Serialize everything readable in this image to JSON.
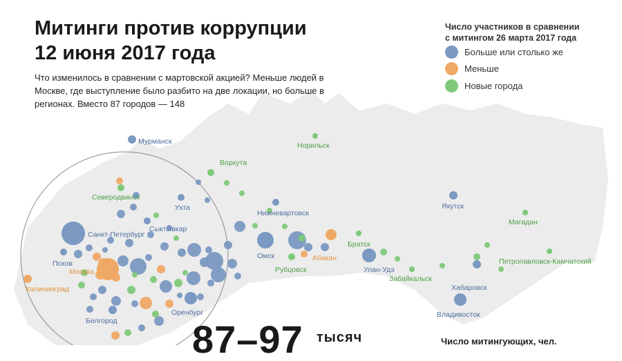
{
  "title": {
    "line1": "Митинги против коррупции",
    "line2": "12 июня 2017 года"
  },
  "description": "Что изменилось в сравнении с мартовской акцией? Меньше людей в Москве, где  выступление было разбито на две локации, но больше в регионах. Вместо 87 городов — 148",
  "legend": {
    "title_line1": "Число участников в сравнении",
    "title_line2": "с митингом 26 марта 2017 года",
    "items": [
      {
        "label": "Больше или столько же",
        "color": "#7b99c2"
      },
      {
        "label": "Меньше",
        "color": "#f0a866"
      },
      {
        "label": "Новые города",
        "color": "#7fc97a"
      }
    ]
  },
  "stats": {
    "number": "87–97",
    "unit": "тысяч",
    "label": "Число митингующих, чел."
  },
  "colors": {
    "blue": "#7b99c2",
    "blue_text": "#4e6f9e",
    "orange": "#f0a866",
    "orange_text": "#e0913f",
    "green": "#7fc97a",
    "green_text": "#4f9e46",
    "land": "#ececec"
  },
  "cities": [
    {
      "name": "Мурманск",
      "type": "blue"
    },
    {
      "name": "Норильск",
      "type": "green"
    },
    {
      "name": "Воркута",
      "type": "green"
    },
    {
      "name": "Северодвинск",
      "type": "green"
    },
    {
      "name": "Ухта",
      "type": "blue"
    },
    {
      "name": "Сыктывкар",
      "type": "blue"
    },
    {
      "name": "Санкт-Петербург",
      "type": "blue"
    },
    {
      "name": "Нижневартовск",
      "type": "blue"
    },
    {
      "name": "Якутск",
      "type": "blue"
    },
    {
      "name": "Магадан",
      "type": "green"
    },
    {
      "name": "Братск",
      "type": "green"
    },
    {
      "name": "Омск",
      "type": "blue"
    },
    {
      "name": "Абакан",
      "type": "orange"
    },
    {
      "name": "Рубцовск",
      "type": "green"
    },
    {
      "name": "Улан-Удэ",
      "type": "blue"
    },
    {
      "name": "Забайкальск",
      "type": "green"
    },
    {
      "name": "Петропавловск-Камчатский",
      "type": "green"
    },
    {
      "name": "Хабаровск",
      "type": "blue"
    },
    {
      "name": "Владивосток",
      "type": "blue"
    },
    {
      "name": "Псков",
      "type": "blue"
    },
    {
      "name": "Москва",
      "type": "orange"
    },
    {
      "name": "Калининград",
      "type": "orange"
    },
    {
      "name": "Белгород",
      "type": "blue"
    },
    {
      "name": "Оренбург",
      "type": "blue"
    }
  ]
}
